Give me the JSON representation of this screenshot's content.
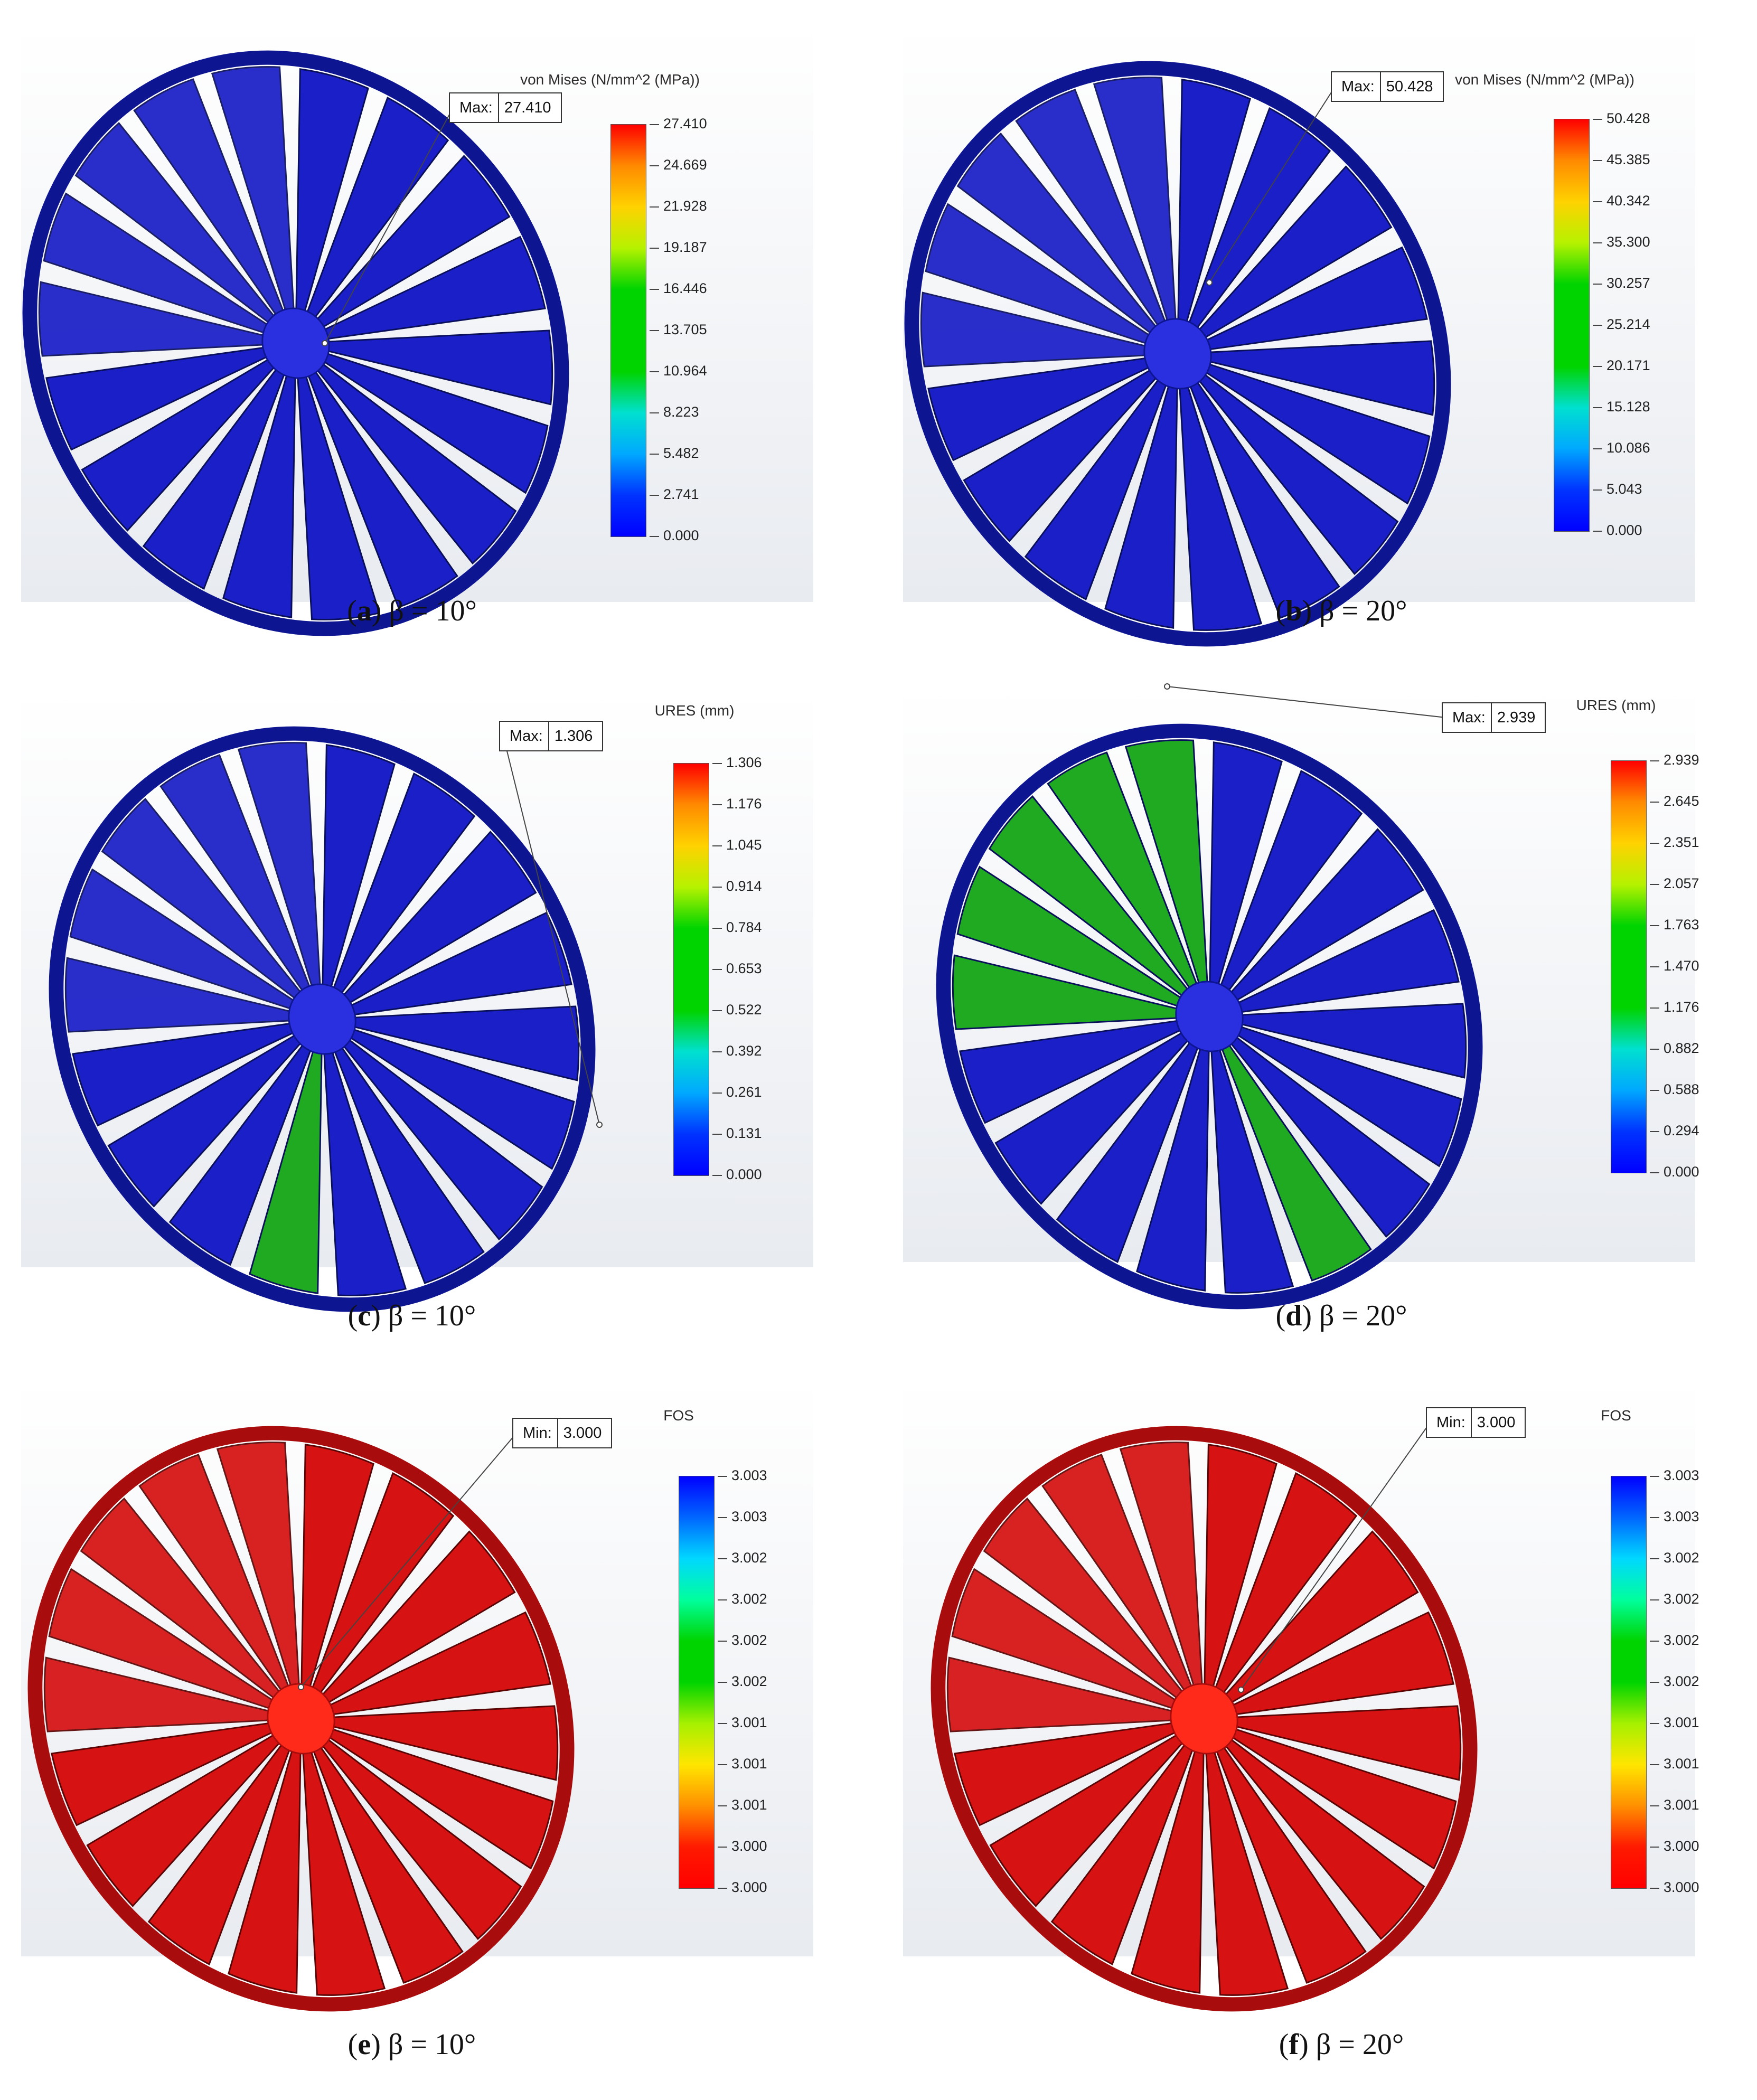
{
  "panels": [
    {
      "id": "a",
      "letter": "a",
      "beta": "β = 10°",
      "legend_title": "von Mises (N/mm^2 (MPa))",
      "ticks": [
        "27.410",
        "24.669",
        "21.928",
        "19.187",
        "16.446",
        "13.705",
        "10.964",
        "8.223",
        "5.482",
        "2.741",
        "0.000"
      ],
      "callout_label": "Max:",
      "callout_value": "27.410",
      "scheme": "vonmises",
      "fringe": "blue"
    },
    {
      "id": "b",
      "letter": "b",
      "beta": "β = 20°",
      "legend_title": "von Mises (N/mm^2 (MPa))",
      "ticks": [
        "50.428",
        "45.385",
        "40.342",
        "35.300",
        "30.257",
        "25.214",
        "20.171",
        "15.128",
        "10.086",
        "5.043",
        "0.000"
      ],
      "callout_label": "Max:",
      "callout_value": "50.428",
      "scheme": "vonmises",
      "fringe": "blue"
    },
    {
      "id": "c",
      "letter": "c",
      "beta": "β = 10°",
      "legend_title": "URES (mm)",
      "ticks": [
        "1.306",
        "1.176",
        "1.045",
        "0.914",
        "0.784",
        "0.653",
        "0.522",
        "0.392",
        "0.261",
        "0.131",
        "0.000"
      ],
      "callout_label": "Max:",
      "callout_value": "1.306",
      "scheme": "ures",
      "fringe": "blue-one-green"
    },
    {
      "id": "d",
      "letter": "d",
      "beta": "β = 20°",
      "legend_title": "URES (mm)",
      "ticks": [
        "2.939",
        "2.645",
        "2.351",
        "2.057",
        "1.763",
        "1.470",
        "1.176",
        "0.882",
        "0.588",
        "0.294",
        "0.000"
      ],
      "callout_label": "Max:",
      "callout_value": "2.939",
      "scheme": "ures",
      "fringe": "blue-many-green"
    },
    {
      "id": "e",
      "letter": "e",
      "beta": "β = 10°",
      "legend_title": "FOS",
      "ticks": [
        "3.003",
        "3.003",
        "3.002",
        "3.002",
        "3.002",
        "3.002",
        "3.001",
        "3.001",
        "3.001",
        "3.000",
        "3.000"
      ],
      "callout_label": "Min:",
      "callout_value": "3.000",
      "scheme": "fos",
      "fringe": "red"
    },
    {
      "id": "f",
      "letter": "f",
      "beta": "β = 20°",
      "legend_title": "FOS",
      "ticks": [
        "3.003",
        "3.003",
        "3.002",
        "3.002",
        "3.002",
        "3.002",
        "3.001",
        "3.001",
        "3.001",
        "3.000",
        "3.000"
      ],
      "callout_label": "Min:",
      "callout_value": "3.000",
      "scheme": "fos",
      "fringe": "red"
    }
  ],
  "colors": {
    "blue_fill": "#1a1fc8",
    "blue_ring": "#0d1590",
    "green_fill": "#1faa22",
    "red_fill": "#d61212",
    "red_ring": "#a80c0c"
  }
}
